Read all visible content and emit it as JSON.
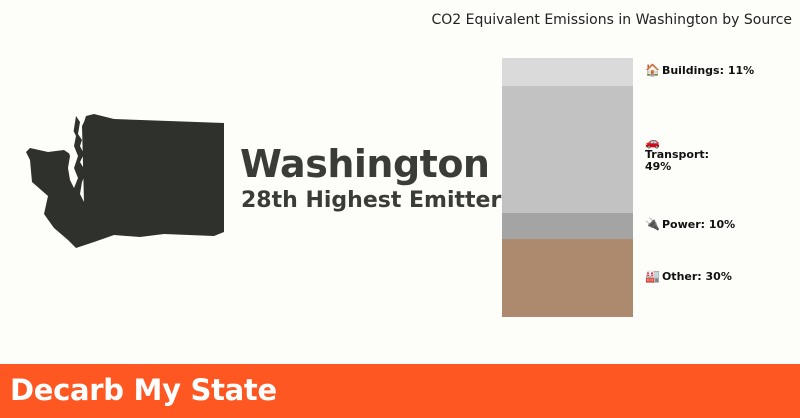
{
  "chart_data": {
    "type": "bar",
    "title": "CO2 Equivalent Emissions in Washington by Source",
    "stacked": true,
    "orientation": "vertical",
    "categories": [
      "Buildings",
      "Transport",
      "Power",
      "Other"
    ],
    "values": [
      11,
      49,
      10,
      30
    ],
    "unit": "%",
    "labels": [
      "Buildings: 11%",
      "Transport: 49%",
      "Power: 10%",
      "Other: 30%"
    ],
    "icons": [
      "🏠",
      "🚗",
      "🔌",
      "🏭"
    ],
    "colors": [
      "#dadada",
      "#c2c2c2",
      "#a4a4a4",
      "#ad8a6e"
    ]
  },
  "state": {
    "name": "Washington",
    "rank_text": "28th Highest Emitter",
    "shape_color": "#2f312c"
  },
  "footer": {
    "brand": "Decarb My State",
    "color": "#ff5722"
  }
}
